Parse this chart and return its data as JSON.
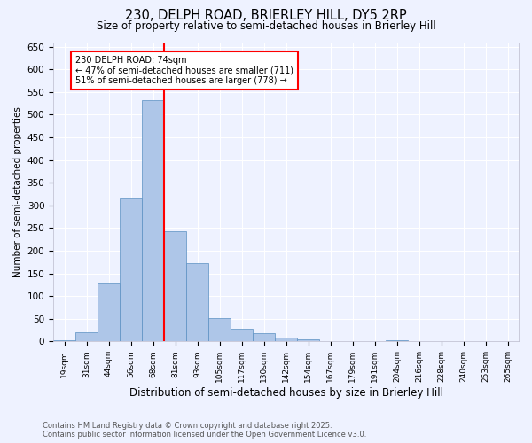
{
  "title1": "230, DELPH ROAD, BRIERLEY HILL, DY5 2RP",
  "title2": "Size of property relative to semi-detached houses in Brierley Hill",
  "xlabel": "Distribution of semi-detached houses by size in Brierley Hill",
  "ylabel": "Number of semi-detached properties",
  "categories": [
    "19sqm",
    "31sqm",
    "44sqm",
    "56sqm",
    "68sqm",
    "81sqm",
    "93sqm",
    "105sqm",
    "117sqm",
    "130sqm",
    "142sqm",
    "154sqm",
    "167sqm",
    "179sqm",
    "191sqm",
    "204sqm",
    "216sqm",
    "228sqm",
    "240sqm",
    "253sqm",
    "265sqm"
  ],
  "values": [
    2,
    20,
    130,
    316,
    533,
    242,
    172,
    52,
    28,
    19,
    8,
    4,
    1,
    1,
    0,
    2,
    0,
    0,
    0,
    1,
    0
  ],
  "bar_color": "#aec6e8",
  "bar_edge_color": "#5a8fc2",
  "red_line_index": 4,
  "annotation_title": "230 DELPH ROAD: 74sqm",
  "annotation_line1": "← 47% of semi-detached houses are smaller (711)",
  "annotation_line2": "51% of semi-detached houses are larger (778) →",
  "ylim": [
    0,
    660
  ],
  "yticks": [
    0,
    50,
    100,
    150,
    200,
    250,
    300,
    350,
    400,
    450,
    500,
    550,
    600,
    650
  ],
  "background_color": "#eef2ff",
  "grid_color": "#ffffff",
  "footnote1": "Contains HM Land Registry data © Crown copyright and database right 2025.",
  "footnote2": "Contains public sector information licensed under the Open Government Licence v3.0."
}
